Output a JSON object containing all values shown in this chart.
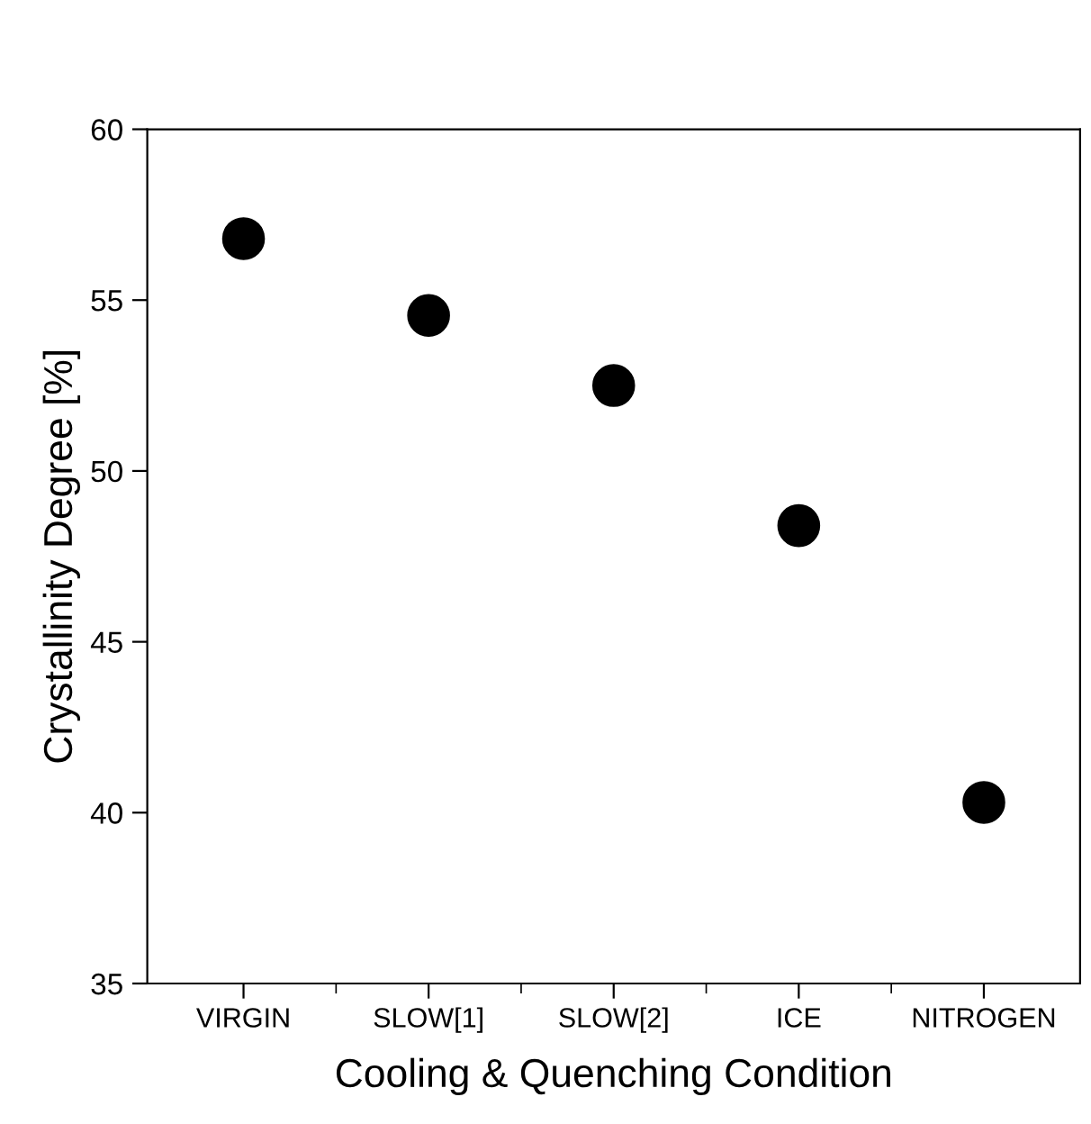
{
  "chart_data": {
    "type": "scatter",
    "xlabel": "Cooling & Quenching Condition",
    "ylabel": "Crystallinity Degree [%]",
    "categories": [
      "VIRGIN",
      "SLOW[1]",
      "SLOW[2]",
      "ICE",
      "NITROGEN"
    ],
    "series": [
      {
        "color": "#000000",
        "values": [
          56.8,
          54.55,
          52.5,
          48.4,
          40.3
        ]
      }
    ],
    "ylim": [
      35,
      60
    ],
    "yticks": [
      35,
      40,
      45,
      50,
      55,
      60
    ],
    "marker": "circle",
    "grid": false,
    "legend": false
  }
}
